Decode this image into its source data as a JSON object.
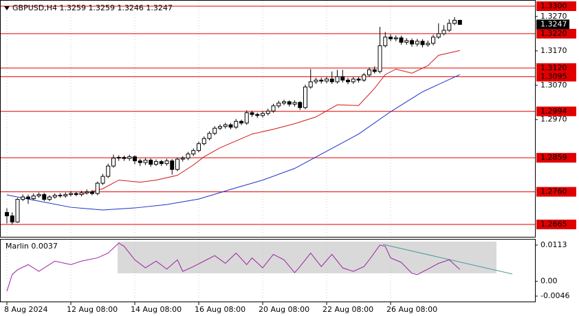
{
  "header": "GBPUSD,H4  1.3259 1.3259 1.3246 1.3247",
  "chart_data": [
    {
      "type": "candlestick",
      "xticks": [
        {
          "value": 0,
          "label": "8 Aug 2024"
        },
        {
          "value": 12,
          "label": "12 Aug 08:00"
        },
        {
          "value": 24,
          "label": "14 Aug 08:00"
        },
        {
          "value": 36,
          "label": "16 Aug 08:00"
        },
        {
          "value": 48,
          "label": "20 Aug 08:00"
        },
        {
          "value": 60,
          "label": "22 Aug 08:00"
        },
        {
          "value": 72,
          "label": "26 Aug 08:00"
        }
      ],
      "open": [
        1.27,
        1.269,
        1.2672,
        1.2738,
        1.2745,
        1.274,
        1.2748,
        1.2752,
        1.2738,
        1.2745,
        1.275,
        1.2748,
        1.2752,
        1.2755,
        1.2752,
        1.2757,
        1.276,
        1.2755,
        1.2785,
        1.2805,
        1.2835,
        1.2858,
        1.286,
        1.2857,
        1.2862,
        1.285,
        1.2845,
        1.2852,
        1.284,
        1.2848,
        1.2842,
        1.285,
        1.2825,
        1.2855,
        1.2858,
        1.287,
        1.288,
        1.29,
        1.2915,
        1.293,
        1.2945,
        1.295,
        1.2955,
        1.2948,
        1.2965,
        1.296,
        1.299,
        1.2985,
        1.2982,
        1.2988,
        1.2995,
        1.301,
        1.3018,
        1.3022,
        1.3015,
        1.302,
        1.3005,
        1.3065,
        1.308,
        1.3085,
        1.3082,
        1.3088,
        1.308,
        1.3095,
        1.3085,
        1.308,
        1.3088,
        1.3085,
        1.31,
        1.3115,
        1.311,
        1.3185,
        1.321,
        1.3205,
        1.3208,
        1.3195,
        1.32,
        1.319,
        1.3198,
        1.3188,
        1.3192,
        1.321,
        1.322,
        1.323,
        1.325,
        1.3259
      ],
      "high": [
        1.2712,
        1.27,
        1.2742,
        1.2752,
        1.2752,
        1.2755,
        1.2758,
        1.2757,
        1.275,
        1.2755,
        1.2756,
        1.2758,
        1.2762,
        1.276,
        1.2763,
        1.2767,
        1.2765,
        1.279,
        1.2812,
        1.2842,
        1.2868,
        1.2866,
        1.2865,
        1.2868,
        1.2866,
        1.2856,
        1.2858,
        1.2857,
        1.2854,
        1.2853,
        1.2856,
        1.2855,
        1.286,
        1.2864,
        1.2876,
        1.2886,
        1.2906,
        1.2921,
        1.2936,
        1.2951,
        1.2956,
        1.2961,
        1.296,
        1.2972,
        1.297,
        1.2997,
        1.2996,
        1.299,
        1.2995,
        1.3002,
        1.3016,
        1.3025,
        1.3028,
        1.3026,
        1.3026,
        1.3024,
        1.3072,
        1.3117,
        1.3092,
        1.3092,
        1.3095,
        1.311,
        1.3115,
        1.3115,
        1.3092,
        1.3094,
        1.3094,
        1.3106,
        1.3122,
        1.3125,
        1.324,
        1.3225,
        1.3218,
        1.3215,
        1.3214,
        1.3207,
        1.3206,
        1.3205,
        1.3204,
        1.32,
        1.3217,
        1.325,
        1.3245,
        1.3262,
        1.3268,
        1.3259
      ],
      "low": [
        1.2668,
        1.2665,
        1.267,
        1.2733,
        1.2725,
        1.2735,
        1.2743,
        1.2733,
        1.2733,
        1.274,
        1.2743,
        1.2743,
        1.2747,
        1.2747,
        1.2747,
        1.2752,
        1.275,
        1.275,
        1.278,
        1.28,
        1.283,
        1.285,
        1.285,
        1.285,
        1.284,
        1.2835,
        1.2838,
        1.2833,
        1.2835,
        1.2835,
        1.2836,
        1.281,
        1.282,
        1.2848,
        1.2852,
        1.2864,
        1.2875,
        1.2895,
        1.291,
        1.2925,
        1.294,
        1.2944,
        1.2942,
        1.2943,
        1.2954,
        1.2955,
        1.2978,
        1.2975,
        1.2976,
        1.2982,
        1.299,
        1.3004,
        1.3012,
        1.3008,
        1.3008,
        1.2998,
        1.3,
        1.306,
        1.3074,
        1.3075,
        1.3076,
        1.3074,
        1.3075,
        1.3078,
        1.3073,
        1.3074,
        1.3078,
        1.308,
        1.3095,
        1.3104,
        1.3105,
        1.318,
        1.3198,
        1.3198,
        1.3188,
        1.3188,
        1.3182,
        1.3183,
        1.318,
        1.3182,
        1.3186,
        1.3205,
        1.3215,
        1.3225,
        1.3245,
        1.3246
      ],
      "close": [
        1.269,
        1.2672,
        1.2738,
        1.2745,
        1.274,
        1.2748,
        1.2752,
        1.2738,
        1.2745,
        1.275,
        1.2748,
        1.2752,
        1.2755,
        1.2752,
        1.2757,
        1.276,
        1.2755,
        1.2785,
        1.2805,
        1.2835,
        1.2858,
        1.286,
        1.2857,
        1.2862,
        1.285,
        1.2845,
        1.2852,
        1.284,
        1.2848,
        1.2842,
        1.285,
        1.2825,
        1.2855,
        1.2858,
        1.287,
        1.288,
        1.29,
        1.2915,
        1.293,
        1.2945,
        1.295,
        1.2955,
        1.2948,
        1.2965,
        1.296,
        1.299,
        1.2985,
        1.2982,
        1.2988,
        1.2995,
        1.301,
        1.3018,
        1.3022,
        1.3015,
        1.302,
        1.3005,
        1.3065,
        1.308,
        1.3085,
        1.3082,
        1.3088,
        1.308,
        1.3095,
        1.3085,
        1.308,
        1.3088,
        1.3085,
        1.31,
        1.3115,
        1.311,
        1.3185,
        1.321,
        1.3205,
        1.3208,
        1.3195,
        1.32,
        1.319,
        1.3198,
        1.3188,
        1.3192,
        1.321,
        1.322,
        1.323,
        1.325,
        1.3259,
        1.3247
      ],
      "ylim": [
        1.2629,
        1.3316
      ],
      "yticks": [
        {
          "value": 1.327,
          "label": "1.3270"
        },
        {
          "value": 1.317,
          "label": "1.3170"
        },
        {
          "value": 1.307,
          "label": "1.3070"
        },
        {
          "value": 1.297,
          "label": "1.2970"
        }
      ],
      "levels": [
        {
          "value": 1.33,
          "label": "1.3300"
        },
        {
          "value": 1.322,
          "label": "1.3220"
        },
        {
          "value": 1.312,
          "label": "1.3120"
        },
        {
          "value": 1.3095,
          "label": "1.3095"
        },
        {
          "value": 1.2994,
          "label": "1.2994"
        },
        {
          "value": 1.2859,
          "label": "1.2859"
        },
        {
          "value": 1.276,
          "label": "1.2760"
        },
        {
          "value": 1.2665,
          "label": "1.2665"
        }
      ],
      "level_color": "#e00000",
      "last_price": 1.3247,
      "bull_color": "#ffffff",
      "bear_color": "#000000",
      "series": [
        {
          "color": "#d01818",
          "x": [
            14,
            18,
            21,
            25,
            28,
            32,
            35,
            37,
            40,
            43,
            46,
            50,
            54,
            58,
            62,
            66,
            69,
            71,
            73,
            76,
            79,
            81,
            85
          ],
          "values": [
            1.2753,
            1.2769,
            1.2794,
            1.2788,
            1.2794,
            1.2808,
            1.2838,
            1.2862,
            1.2888,
            1.2908,
            1.2928,
            1.2942,
            1.2958,
            1.2978,
            1.3013,
            1.3011,
            1.3061,
            1.3101,
            1.3117,
            1.3105,
            1.3127,
            1.3157,
            1.3171
          ]
        },
        {
          "color": "#1a2fc8",
          "x": [
            0,
            6,
            12,
            18,
            24,
            30,
            36,
            42,
            48,
            54,
            60,
            66,
            72,
            78,
            85
          ],
          "values": [
            1.2751,
            1.2733,
            1.2715,
            1.2707,
            1.2713,
            1.2723,
            1.2739,
            1.2767,
            1.2794,
            1.2828,
            1.2878,
            1.2928,
            1.2993,
            1.3051,
            1.3101
          ]
        }
      ],
      "grid": true
    },
    {
      "type": "line",
      "title": "Marlin 0.0037",
      "color": "#a020a0",
      "x": [
        0,
        1,
        2,
        4,
        6,
        9,
        12,
        14,
        17,
        19,
        21,
        22,
        24,
        26,
        28,
        30,
        32,
        33,
        35,
        37,
        39,
        41,
        43,
        45,
        46,
        48,
        50,
        52,
        54,
        55,
        57,
        59,
        61,
        63,
        65,
        67,
        68,
        70,
        71,
        72,
        74,
        76,
        77,
        79,
        81,
        83,
        85
      ],
      "values": [
        -0.0031,
        0.0021,
        0.0036,
        0.0052,
        0.0031,
        0.0063,
        0.0052,
        0.0063,
        0.0073,
        0.0088,
        0.0119,
        0.0109,
        0.0067,
        0.0042,
        0.0063,
        0.0038,
        0.0067,
        0.0031,
        0.0046,
        0.0063,
        0.008,
        0.0056,
        0.0088,
        0.0052,
        0.0073,
        0.0042,
        0.0084,
        0.0067,
        0.0027,
        0.0046,
        0.0088,
        0.0046,
        0.0084,
        0.0042,
        0.0031,
        0.0046,
        0.0067,
        0.0113,
        0.0109,
        0.0073,
        0.0059,
        0.0025,
        0.0021,
        0.0038,
        0.0056,
        0.0067,
        0.0037
      ],
      "ylim": [
        -0.0063,
        0.013
      ],
      "yticks": [
        0.0113,
        {
          "value": 0,
          "label": "0.00"
        },
        -0.0046
      ]
    }
  ]
}
